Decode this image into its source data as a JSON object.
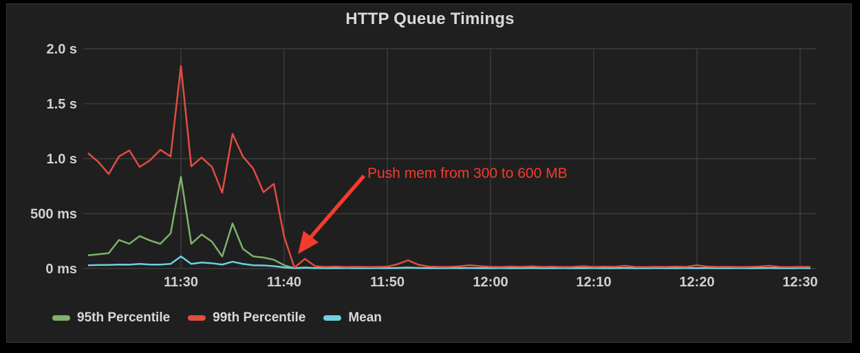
{
  "panel": {
    "title": "HTTP Queue Timings",
    "background": "#1f1f1f",
    "border_color": "#383838"
  },
  "annotation": {
    "text": "Push mem from 300 to 600 MB",
    "color": "#f43b2e"
  },
  "legend": [
    {
      "label": "95th Percentile",
      "color": "#7eb26d"
    },
    {
      "label": "99th Percentile",
      "color": "#e24d42"
    },
    {
      "label": "Mean",
      "color": "#6ed0e0"
    }
  ],
  "chart_data": {
    "type": "line",
    "title": "HTTP Queue Timings",
    "xlabel": "",
    "ylabel": "",
    "ylim_ms": [
      0,
      2000
    ],
    "grid": true,
    "grid_color": "#4a4a4a",
    "legend_position": "bottom-left",
    "x_start_time": "11:21",
    "x_step_minutes": 1,
    "x_ticks": [
      {
        "label": "11:30",
        "min": 9
      },
      {
        "label": "11:40",
        "min": 19
      },
      {
        "label": "11:50",
        "min": 29
      },
      {
        "label": "12:00",
        "min": 39
      },
      {
        "label": "12:10",
        "min": 49
      },
      {
        "label": "12:20",
        "min": 59
      },
      {
        "label": "12:30",
        "min": 69
      }
    ],
    "y_ticks": [
      {
        "label": "2.0 s",
        "ms": 2000
      },
      {
        "label": "1.5 s",
        "ms": 1500
      },
      {
        "label": "1.0 s",
        "ms": 1000
      },
      {
        "label": "500 ms",
        "ms": 500
      },
      {
        "label": "0 ms",
        "ms": 0
      }
    ],
    "series": [
      {
        "name": "95th Percentile",
        "color": "#7eb26d",
        "values_ms": [
          120,
          130,
          140,
          260,
          225,
          295,
          255,
          225,
          320,
          835,
          225,
          310,
          245,
          110,
          410,
          180,
          110,
          100,
          80,
          30,
          3,
          10,
          5,
          4,
          4,
          5,
          4,
          4,
          5,
          4,
          6,
          10,
          6,
          4,
          4,
          5,
          4,
          5,
          4,
          4,
          5,
          4,
          4,
          5,
          4,
          4,
          5,
          4,
          4,
          5,
          4,
          4,
          5,
          4,
          4,
          5,
          4,
          4,
          5,
          4,
          5,
          4,
          4,
          5,
          4,
          4,
          5,
          4,
          4,
          5,
          4
        ]
      },
      {
        "name": "Mean",
        "color": "#6ed0e0",
        "values_ms": [
          30,
          32,
          33,
          36,
          35,
          42,
          36,
          36,
          42,
          110,
          42,
          55,
          48,
          36,
          62,
          42,
          30,
          28,
          22,
          10,
          3,
          6,
          4,
          3,
          3,
          4,
          3,
          3,
          4,
          3,
          4,
          6,
          4,
          3,
          3,
          4,
          3,
          4,
          3,
          3,
          4,
          3,
          3,
          4,
          3,
          3,
          4,
          3,
          3,
          4,
          3,
          3,
          4,
          3,
          3,
          4,
          3,
          3,
          4,
          3,
          4,
          3,
          3,
          4,
          3,
          3,
          4,
          3,
          3,
          4,
          3
        ]
      },
      {
        "name": "99th Percentile",
        "color": "#e24d42",
        "values_ms": [
          1050,
          970,
          860,
          1020,
          1075,
          925,
          985,
          1080,
          1020,
          1843,
          930,
          1010,
          925,
          690,
          1225,
          1020,
          910,
          695,
          770,
          290,
          8,
          88,
          22,
          15,
          18,
          14,
          16,
          14,
          15,
          17,
          40,
          75,
          35,
          18,
          15,
          16,
          20,
          30,
          22,
          16,
          15,
          18,
          16,
          20,
          15,
          17,
          14,
          16,
          22,
          15,
          18,
          16,
          25,
          15,
          14,
          16,
          15,
          18,
          16,
          30,
          18,
          15,
          16,
          14,
          15,
          18,
          25,
          15,
          14,
          16,
          15
        ]
      }
    ],
    "annotations": [
      {
        "text": "Push mem from 300 to 600 MB",
        "points_at_time": "11:41",
        "color": "#f43b2e"
      }
    ]
  }
}
